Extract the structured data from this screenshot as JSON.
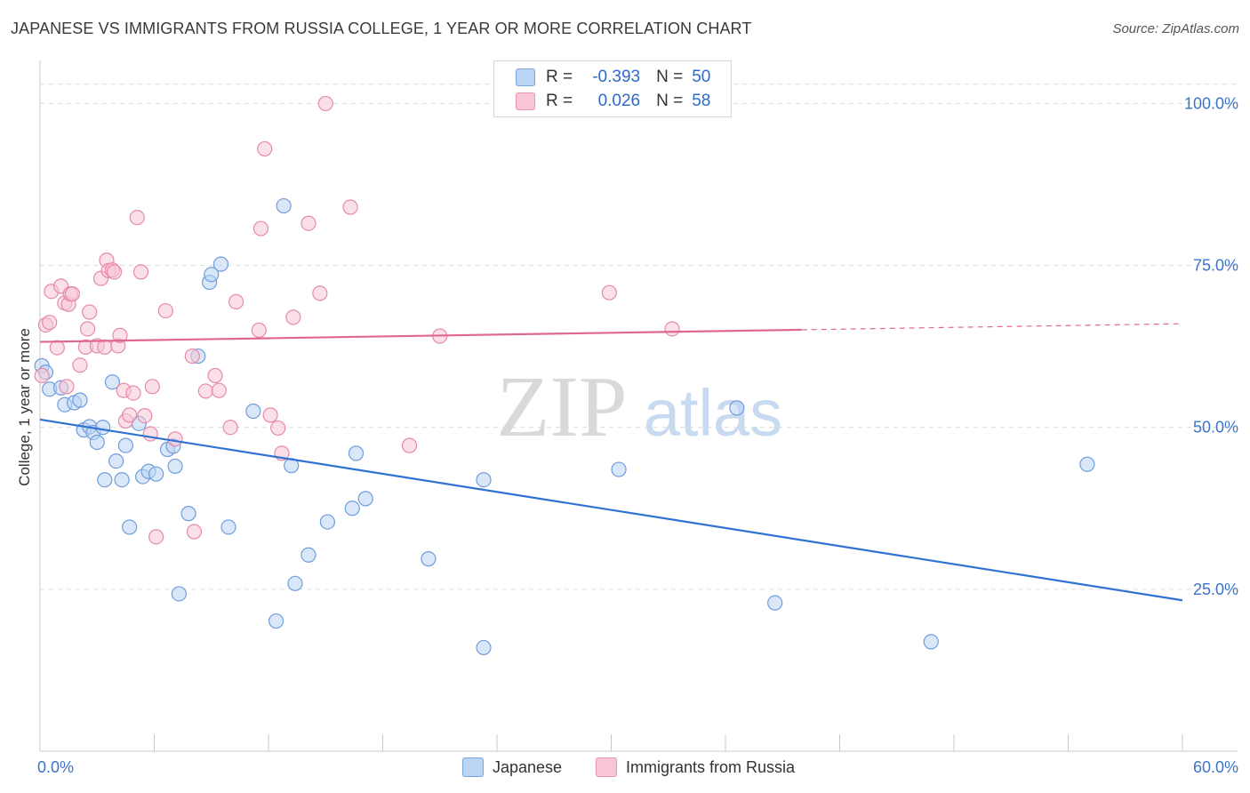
{
  "title": "JAPANESE VS IMMIGRANTS FROM RUSSIA COLLEGE, 1 YEAR OR MORE CORRELATION CHART",
  "source": "Source: ZipAtlas.com",
  "watermark": {
    "zip": "ZIP",
    "atlas": "atlas"
  },
  "legend": {
    "r_label": "R =",
    "n_label": "N =",
    "rows": [
      {
        "r": "-0.393",
        "n": "50"
      },
      {
        "r": "0.026",
        "n": "58"
      }
    ]
  },
  "bottom_legend": [
    "Japanese",
    "Immigrants from Russia"
  ],
  "colors": {
    "japanese_fill": "#bcd4f4",
    "japanese_stroke": "#6f9ddd",
    "japanese_line": "#2f72d3",
    "russia_fill": "#f8c6d6",
    "russia_stroke": "#e58aa9",
    "russia_line": "#e06890",
    "axis_text": "#3d74c9",
    "grid": "#dcdcdc"
  },
  "chart_data": {
    "type": "scatter",
    "title": "JAPANESE VS IMMIGRANTS FROM RUSSIA COLLEGE, 1 YEAR OR MORE CORRELATION CHART",
    "xlabel": "",
    "ylabel": "College, 1 year or more",
    "xlim": [
      0,
      60
    ],
    "ylim": [
      0,
      105
    ],
    "x_tick_labels": [
      "0.0%",
      "60.0%"
    ],
    "y_ticks": [
      25,
      50,
      75,
      100
    ],
    "y_tick_labels": [
      "25.0%",
      "50.0%",
      "75.0%",
      "100.0%"
    ],
    "grid": true,
    "series": [
      {
        "name": "Japanese",
        "r": -0.393,
        "n": 50,
        "trend": {
          "x": [
            0,
            60
          ],
          "y": [
            51.2,
            23.3
          ],
          "solid_until": 60
        },
        "points": [
          [
            0.1,
            59.5
          ],
          [
            0.3,
            58.5
          ],
          [
            0.5,
            55.9
          ],
          [
            1.1,
            56.1
          ],
          [
            1.3,
            53.5
          ],
          [
            1.8,
            53.8
          ],
          [
            2.1,
            54.2
          ],
          [
            2.3,
            49.6
          ],
          [
            2.6,
            50.1
          ],
          [
            2.8,
            49.2
          ],
          [
            3.0,
            47.7
          ],
          [
            3.4,
            41.9
          ],
          [
            3.8,
            57.0
          ],
          [
            4.0,
            44.8
          ],
          [
            4.3,
            41.9
          ],
          [
            4.5,
            47.2
          ],
          [
            4.7,
            34.6
          ],
          [
            5.2,
            50.6
          ],
          [
            5.4,
            42.4
          ],
          [
            5.7,
            43.2
          ],
          [
            6.1,
            42.8
          ],
          [
            6.7,
            46.6
          ],
          [
            7.0,
            47.1
          ],
          [
            7.1,
            44.0
          ],
          [
            7.3,
            24.3
          ],
          [
            7.8,
            36.7
          ],
          [
            8.3,
            61.0
          ],
          [
            8.9,
            72.4
          ],
          [
            9.0,
            73.6
          ],
          [
            9.5,
            75.2
          ],
          [
            9.9,
            34.6
          ],
          [
            11.2,
            52.5
          ],
          [
            12.4,
            20.1
          ],
          [
            12.8,
            84.2
          ],
          [
            13.2,
            44.1
          ],
          [
            13.4,
            25.9
          ],
          [
            14.1,
            30.3
          ],
          [
            15.1,
            35.4
          ],
          [
            16.4,
            37.5
          ],
          [
            16.6,
            46.0
          ],
          [
            17.1,
            39.0
          ],
          [
            20.4,
            29.7
          ],
          [
            23.3,
            41.9
          ],
          [
            23.3,
            16.0
          ],
          [
            30.4,
            43.5
          ],
          [
            36.6,
            53.0
          ],
          [
            38.6,
            22.9
          ],
          [
            46.8,
            16.9
          ],
          [
            55.0,
            44.3
          ],
          [
            3.3,
            50.0
          ]
        ]
      },
      {
        "name": "Immigrants from Russia",
        "r": 0.026,
        "n": 58,
        "trend": {
          "x": [
            0,
            60
          ],
          "y": [
            63.2,
            66.0
          ],
          "solid_until": 40
        },
        "points": [
          [
            0.1,
            58.0
          ],
          [
            0.3,
            65.8
          ],
          [
            0.5,
            66.2
          ],
          [
            0.6,
            71.0
          ],
          [
            0.9,
            62.3
          ],
          [
            1.1,
            71.8
          ],
          [
            1.3,
            69.2
          ],
          [
            1.5,
            69.0
          ],
          [
            1.6,
            70.6
          ],
          [
            1.7,
            70.6
          ],
          [
            2.1,
            59.6
          ],
          [
            2.4,
            62.4
          ],
          [
            2.5,
            65.2
          ],
          [
            2.6,
            67.8
          ],
          [
            3.0,
            62.6
          ],
          [
            3.2,
            73.0
          ],
          [
            3.4,
            62.4
          ],
          [
            3.5,
            75.8
          ],
          [
            3.6,
            74.2
          ],
          [
            3.8,
            74.3
          ],
          [
            3.9,
            74.0
          ],
          [
            4.1,
            62.6
          ],
          [
            4.2,
            64.2
          ],
          [
            4.4,
            55.7
          ],
          [
            4.5,
            51.0
          ],
          [
            4.7,
            51.9
          ],
          [
            4.9,
            55.3
          ],
          [
            5.1,
            82.4
          ],
          [
            5.3,
            74.0
          ],
          [
            5.5,
            51.8
          ],
          [
            5.8,
            49.0
          ],
          [
            5.9,
            56.3
          ],
          [
            6.1,
            33.1
          ],
          [
            6.6,
            68.0
          ],
          [
            7.1,
            48.2
          ],
          [
            8.0,
            61.0
          ],
          [
            8.1,
            33.9
          ],
          [
            8.7,
            55.6
          ],
          [
            9.2,
            58.0
          ],
          [
            9.4,
            55.7
          ],
          [
            10.0,
            50.0
          ],
          [
            10.3,
            69.4
          ],
          [
            11.5,
            65.0
          ],
          [
            11.6,
            80.7
          ],
          [
            11.8,
            93.0
          ],
          [
            12.1,
            51.9
          ],
          [
            12.5,
            49.9
          ],
          [
            13.3,
            67.0
          ],
          [
            14.1,
            81.5
          ],
          [
            14.7,
            70.7
          ],
          [
            15.0,
            100.0
          ],
          [
            16.3,
            84.0
          ],
          [
            19.4,
            47.2
          ],
          [
            21.0,
            64.1
          ],
          [
            29.9,
            70.8
          ],
          [
            33.2,
            65.2
          ],
          [
            1.4,
            56.3
          ],
          [
            12.7,
            46.0
          ]
        ]
      }
    ]
  }
}
